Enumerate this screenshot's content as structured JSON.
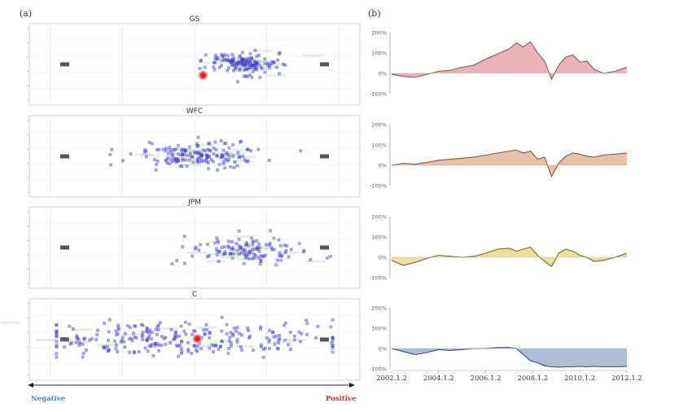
{
  "figure": {
    "panel_a_label": "(a)",
    "panel_b_label": "(b)",
    "legend_negative": "Negative",
    "legend_positive": "Positive"
  },
  "chart_data": [
    {
      "type": "scatter",
      "panel": "a",
      "xlim": [
        -1,
        1
      ],
      "ylim": [
        -1,
        1
      ],
      "x_axis_direction": [
        "Negative",
        "Positive"
      ],
      "marker_colors": {
        "point": "#3a35c8",
        "highlight": "#e8202a",
        "ghost": "#8fbf8f",
        "bar": "#555555"
      },
      "facets": [
        {
          "title": "GS",
          "center": [
            0.32,
            0.02
          ],
          "spread": [
            0.14,
            0.18
          ],
          "n": 140,
          "highlight": [
            0.06,
            -0.32
          ]
        },
        {
          "title": "WFC",
          "center": [
            0.02,
            0.04
          ],
          "spread": [
            0.22,
            0.18
          ],
          "n": 160,
          "highlight": null
        },
        {
          "title": "JPM",
          "center": [
            0.36,
            -0.12
          ],
          "spread": [
            0.2,
            0.2
          ],
          "n": 120,
          "highlight": null
        },
        {
          "title": "C",
          "center": [
            -0.05,
            0.02
          ],
          "spread": [
            0.55,
            0.24
          ],
          "n": 260,
          "highlight": [
            0.02,
            0.02
          ]
        }
      ]
    },
    {
      "type": "area",
      "panel": "b",
      "x_tick_labels": [
        "2002.1.2",
        "2004.1.2",
        "2006.1.2",
        "2008.1.2",
        "2010.1.2",
        "2012.1.2"
      ],
      "y_tick_labels": [
        "200%",
        "100%",
        "0%",
        "-100%"
      ],
      "ylim": [
        -100,
        200
      ],
      "x": [
        2002.0,
        2002.5,
        2003.0,
        2003.5,
        2004.0,
        2004.5,
        2005.0,
        2005.5,
        2006.0,
        2006.5,
        2007.0,
        2007.3,
        2007.6,
        2007.9,
        2008.2,
        2008.5,
        2008.8,
        2009.1,
        2009.4,
        2009.7,
        2010.0,
        2010.3,
        2010.6,
        2011.0,
        2011.5,
        2012.0
      ],
      "series": [
        {
          "name": "GS",
          "fill": "#e8a3ad",
          "stroke": "#8a5a60",
          "values": [
            -5,
            -15,
            -20,
            -5,
            10,
            15,
            30,
            40,
            70,
            95,
            120,
            150,
            130,
            155,
            100,
            60,
            -30,
            40,
            80,
            90,
            55,
            60,
            20,
            0,
            10,
            30
          ]
        },
        {
          "name": "WFC",
          "fill": "#e6b597",
          "stroke": "#7a5a45",
          "values": [
            0,
            10,
            5,
            15,
            25,
            30,
            35,
            40,
            50,
            60,
            70,
            75,
            60,
            70,
            30,
            40,
            -55,
            10,
            45,
            60,
            55,
            45,
            40,
            50,
            55,
            60
          ]
        },
        {
          "name": "JPM",
          "fill": "#ecd98a",
          "stroke": "#6b6a35",
          "values": [
            -15,
            -40,
            -25,
            -5,
            10,
            5,
            0,
            5,
            20,
            40,
            45,
            30,
            40,
            50,
            10,
            -20,
            -45,
            20,
            40,
            30,
            10,
            0,
            -20,
            -15,
            0,
            20
          ]
        },
        {
          "name": "C",
          "fill": "#9cb2cc",
          "stroke": "#35506b",
          "values": [
            0,
            -15,
            -30,
            -20,
            -5,
            -10,
            -5,
            0,
            0,
            5,
            5,
            0,
            -30,
            -60,
            -70,
            -85,
            -90,
            -92,
            -90,
            -90,
            -88,
            -90,
            -88,
            -90,
            -90,
            -88
          ]
        }
      ]
    }
  ]
}
